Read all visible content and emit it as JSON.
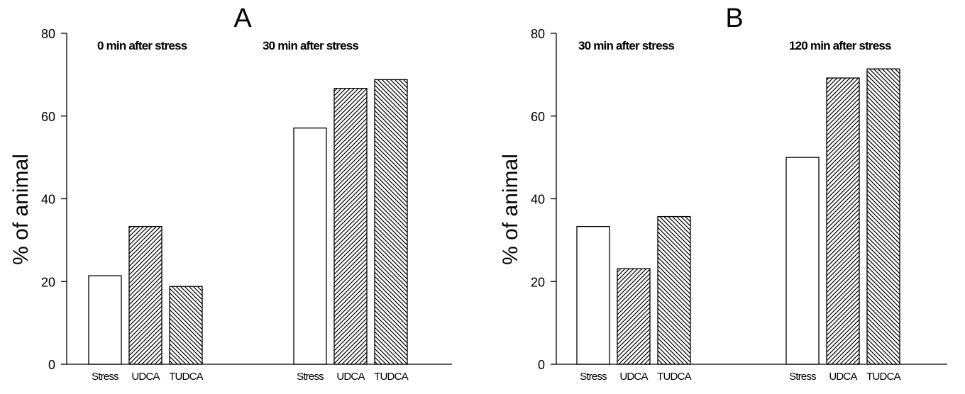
{
  "chart_data": [
    {
      "type": "bar",
      "panel": "A",
      "ylabel": "% of animal",
      "ylim": [
        0,
        80
      ],
      "yticks": [
        0,
        20,
        40,
        60,
        80
      ],
      "groups": [
        {
          "title": "0 min after stress",
          "categories": [
            "Stress",
            "UDCA",
            "TUDCA"
          ],
          "values": [
            21.4,
            33.3,
            18.8
          ]
        },
        {
          "title": "30 min after stress",
          "categories": [
            "Stress",
            "UDCA",
            "TUDCA"
          ],
          "values": [
            57.1,
            66.7,
            68.8
          ]
        }
      ]
    },
    {
      "type": "bar",
      "panel": "B",
      "ylabel": "% of animal",
      "ylim": [
        0,
        80
      ],
      "yticks": [
        0,
        20,
        40,
        60,
        80
      ],
      "groups": [
        {
          "title": "30 min after stress",
          "categories": [
            "Stress",
            "UDCA",
            "TUDCA"
          ],
          "values": [
            33.3,
            23.1,
            35.7
          ]
        },
        {
          "title": "120 min after stress",
          "categories": [
            "Stress",
            "UDCA",
            "TUDCA"
          ],
          "values": [
            50.0,
            69.2,
            71.4
          ]
        }
      ]
    }
  ],
  "bar_fills": {
    "Stress": "white",
    "UDCA": "hatch-forward",
    "TUDCA": "hatch-backward"
  },
  "colors": {
    "stroke": "#000000",
    "background": "#ffffff"
  }
}
